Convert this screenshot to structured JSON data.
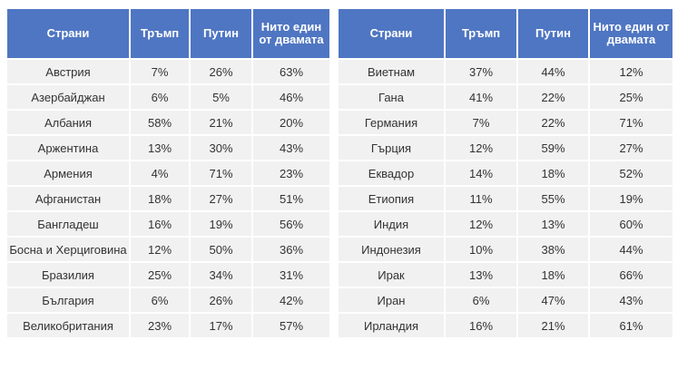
{
  "left_table": {
    "headers": [
      "Страни",
      "Тръмп",
      "Путин",
      "Нито един от двамата"
    ],
    "rows": [
      [
        "Австрия",
        "7%",
        "26%",
        "63%"
      ],
      [
        "Азербайджан",
        "6%",
        "5%",
        "46%"
      ],
      [
        "Албания",
        "58%",
        "21%",
        "20%"
      ],
      [
        "Аржентина",
        "13%",
        "30%",
        "43%"
      ],
      [
        "Армения",
        "4%",
        "71%",
        "23%"
      ],
      [
        "Афганистан",
        "18%",
        "27%",
        "51%"
      ],
      [
        "Бангладеш",
        "16%",
        "19%",
        "56%"
      ],
      [
        "Босна и Херциговина",
        "12%",
        "50%",
        "36%"
      ],
      [
        "Бразилия",
        "25%",
        "34%",
        "31%"
      ],
      [
        "България",
        "6%",
        "26%",
        "42%"
      ],
      [
        "Великобритания",
        "23%",
        "17%",
        "57%"
      ]
    ]
  },
  "right_table": {
    "headers": [
      "Страни",
      "Тръмп",
      "Путин",
      "Нито един от двамата"
    ],
    "rows": [
      [
        "Виетнам",
        "37%",
        "44%",
        "12%"
      ],
      [
        "Гана",
        "41%",
        "22%",
        "25%"
      ],
      [
        "Германия",
        "7%",
        "22%",
        "71%"
      ],
      [
        "Гърция",
        "12%",
        "59%",
        "27%"
      ],
      [
        "Еквадор",
        "14%",
        "18%",
        "52%"
      ],
      [
        "Етиопия",
        "11%",
        "55%",
        "19%"
      ],
      [
        "Индия",
        "12%",
        "13%",
        "60%"
      ],
      [
        "Индонезия",
        "10%",
        "38%",
        "44%"
      ],
      [
        "Ирак",
        "13%",
        "18%",
        "66%"
      ],
      [
        "Иран",
        "6%",
        "47%",
        "43%"
      ],
      [
        "Ирландия",
        "16%",
        "21%",
        "61%"
      ]
    ]
  }
}
